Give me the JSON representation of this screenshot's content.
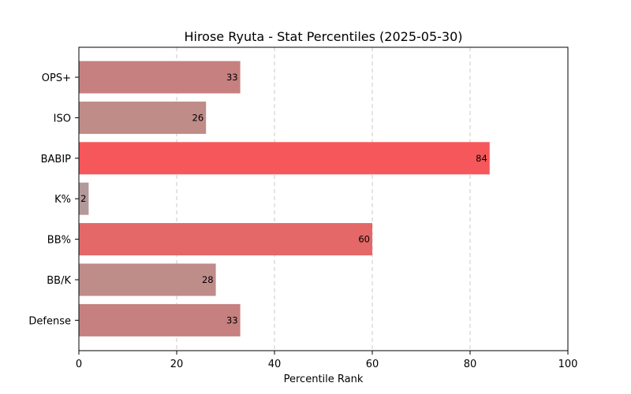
{
  "chart_data": {
    "type": "bar",
    "orientation": "horizontal",
    "title": "Hirose Ryuta - Stat Percentiles (2025-05-30)",
    "xlabel": "Percentile Rank",
    "ylabel": "",
    "xlim": [
      0,
      100
    ],
    "xticks": [
      0,
      20,
      40,
      60,
      80,
      100
    ],
    "grid": "x, dashed",
    "categories": [
      "OPS+",
      "ISO",
      "BABIP",
      "K%",
      "BB%",
      "BB/K",
      "Defense"
    ],
    "values": [
      33,
      26,
      84,
      2,
      60,
      28,
      33
    ],
    "bar_colors": [
      "#c68080",
      "#bf8c88",
      "#f6575a",
      "#b4999a",
      "#e36867",
      "#be8c89",
      "#c68080"
    ]
  }
}
